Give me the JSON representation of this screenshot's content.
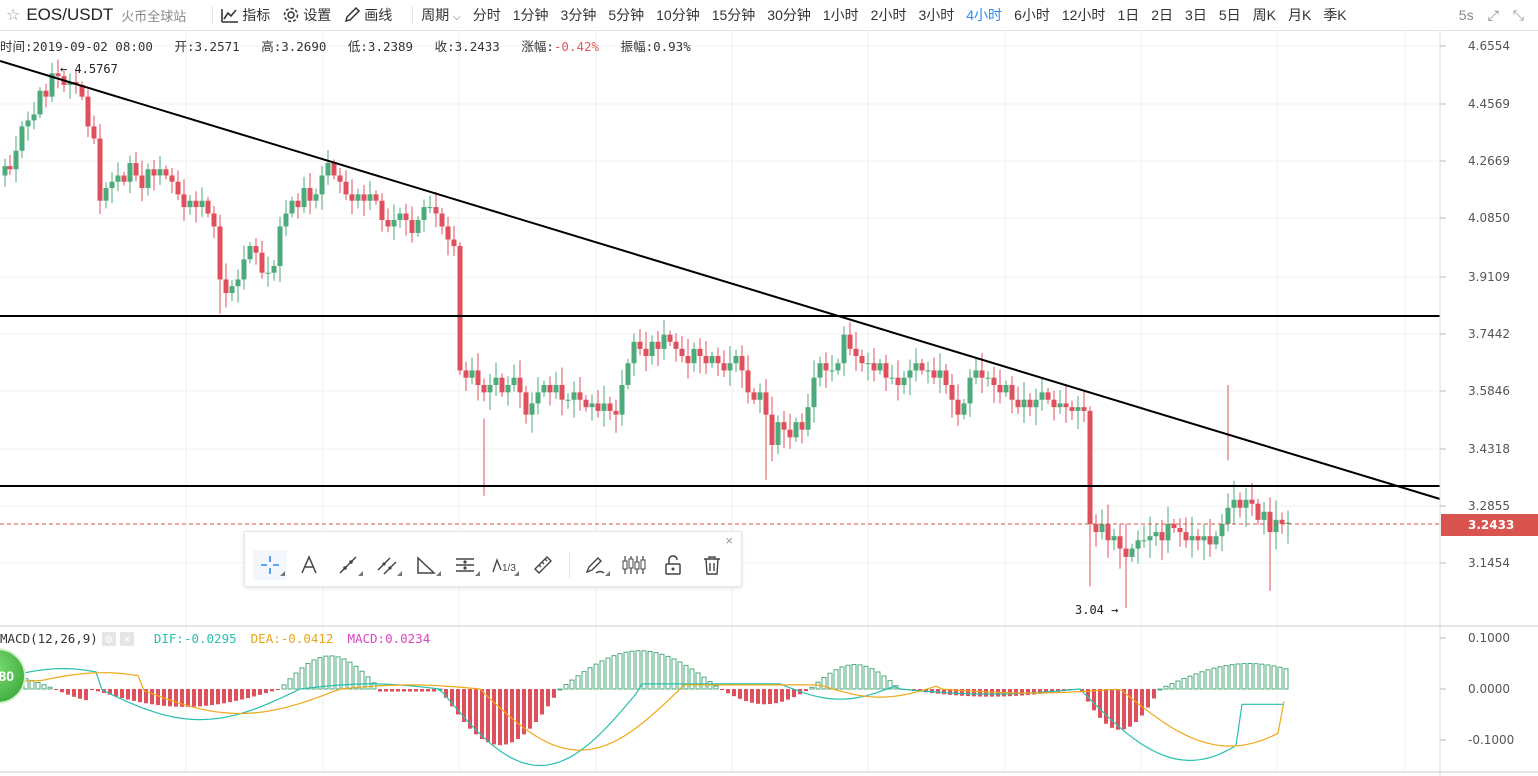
{
  "header": {
    "pair": "EOS/USDT",
    "exchange": "火币全球站",
    "tools": [
      "指标",
      "设置",
      "画线"
    ],
    "period_label": "周期",
    "periods": [
      "分时",
      "1分钟",
      "3分钟",
      "5分钟",
      "10分钟",
      "15分钟",
      "30分钟",
      "1小时",
      "2小时",
      "3小时",
      "4小时",
      "6小时",
      "12小时",
      "1日",
      "2日",
      "3日",
      "5日",
      "周K",
      "月K",
      "季K"
    ],
    "active_period": "4小时",
    "refresh": "5s"
  },
  "info": {
    "time": "时间:2019-09-02 08:00",
    "open": "开:3.2571",
    "high": "高:3.2690",
    "low": "低:3.2389",
    "close": "收:3.2433",
    "change_label": "涨幅:",
    "change_value": "-0.42%",
    "amplitude": "振幅:0.93%"
  },
  "price_axis": [
    "4.6554",
    "4.4569",
    "4.2669",
    "4.0850",
    "3.9109",
    "3.7442",
    "3.5846",
    "3.4318",
    "3.2855",
    "3.1454"
  ],
  "current_price": "3.2433",
  "annotations": {
    "high_mark": "4.5767",
    "low_mark": "3.04"
  },
  "macd": {
    "title": "MACD(12,26,9)",
    "dif": "DIF:-0.0295",
    "dea": "DEA:-0.0412",
    "macd": "MACD:0.0234",
    "axis": [
      "0.1000",
      "0.0000",
      "-0.1000"
    ]
  },
  "badge": "80",
  "colors": {
    "up": "#4daa7b",
    "down": "#e0505c",
    "accent": "#2a8bf2",
    "dif": "#28bfb0",
    "dea": "#f0a818",
    "price_tag": "#d9534f"
  },
  "icons": [
    "star-icon",
    "chart-indicator-icon",
    "gear-icon",
    "pencil-icon",
    "chevron-down-icon",
    "expand-icon",
    "crosshair-icon",
    "text-icon",
    "trendline-icon",
    "parallel-channel-icon",
    "triangle-icon",
    "fib-icon",
    "wave-icon",
    "ruler-icon",
    "brush-icon",
    "candles-icon",
    "lock-icon",
    "trash-icon",
    "close-icon"
  ]
}
